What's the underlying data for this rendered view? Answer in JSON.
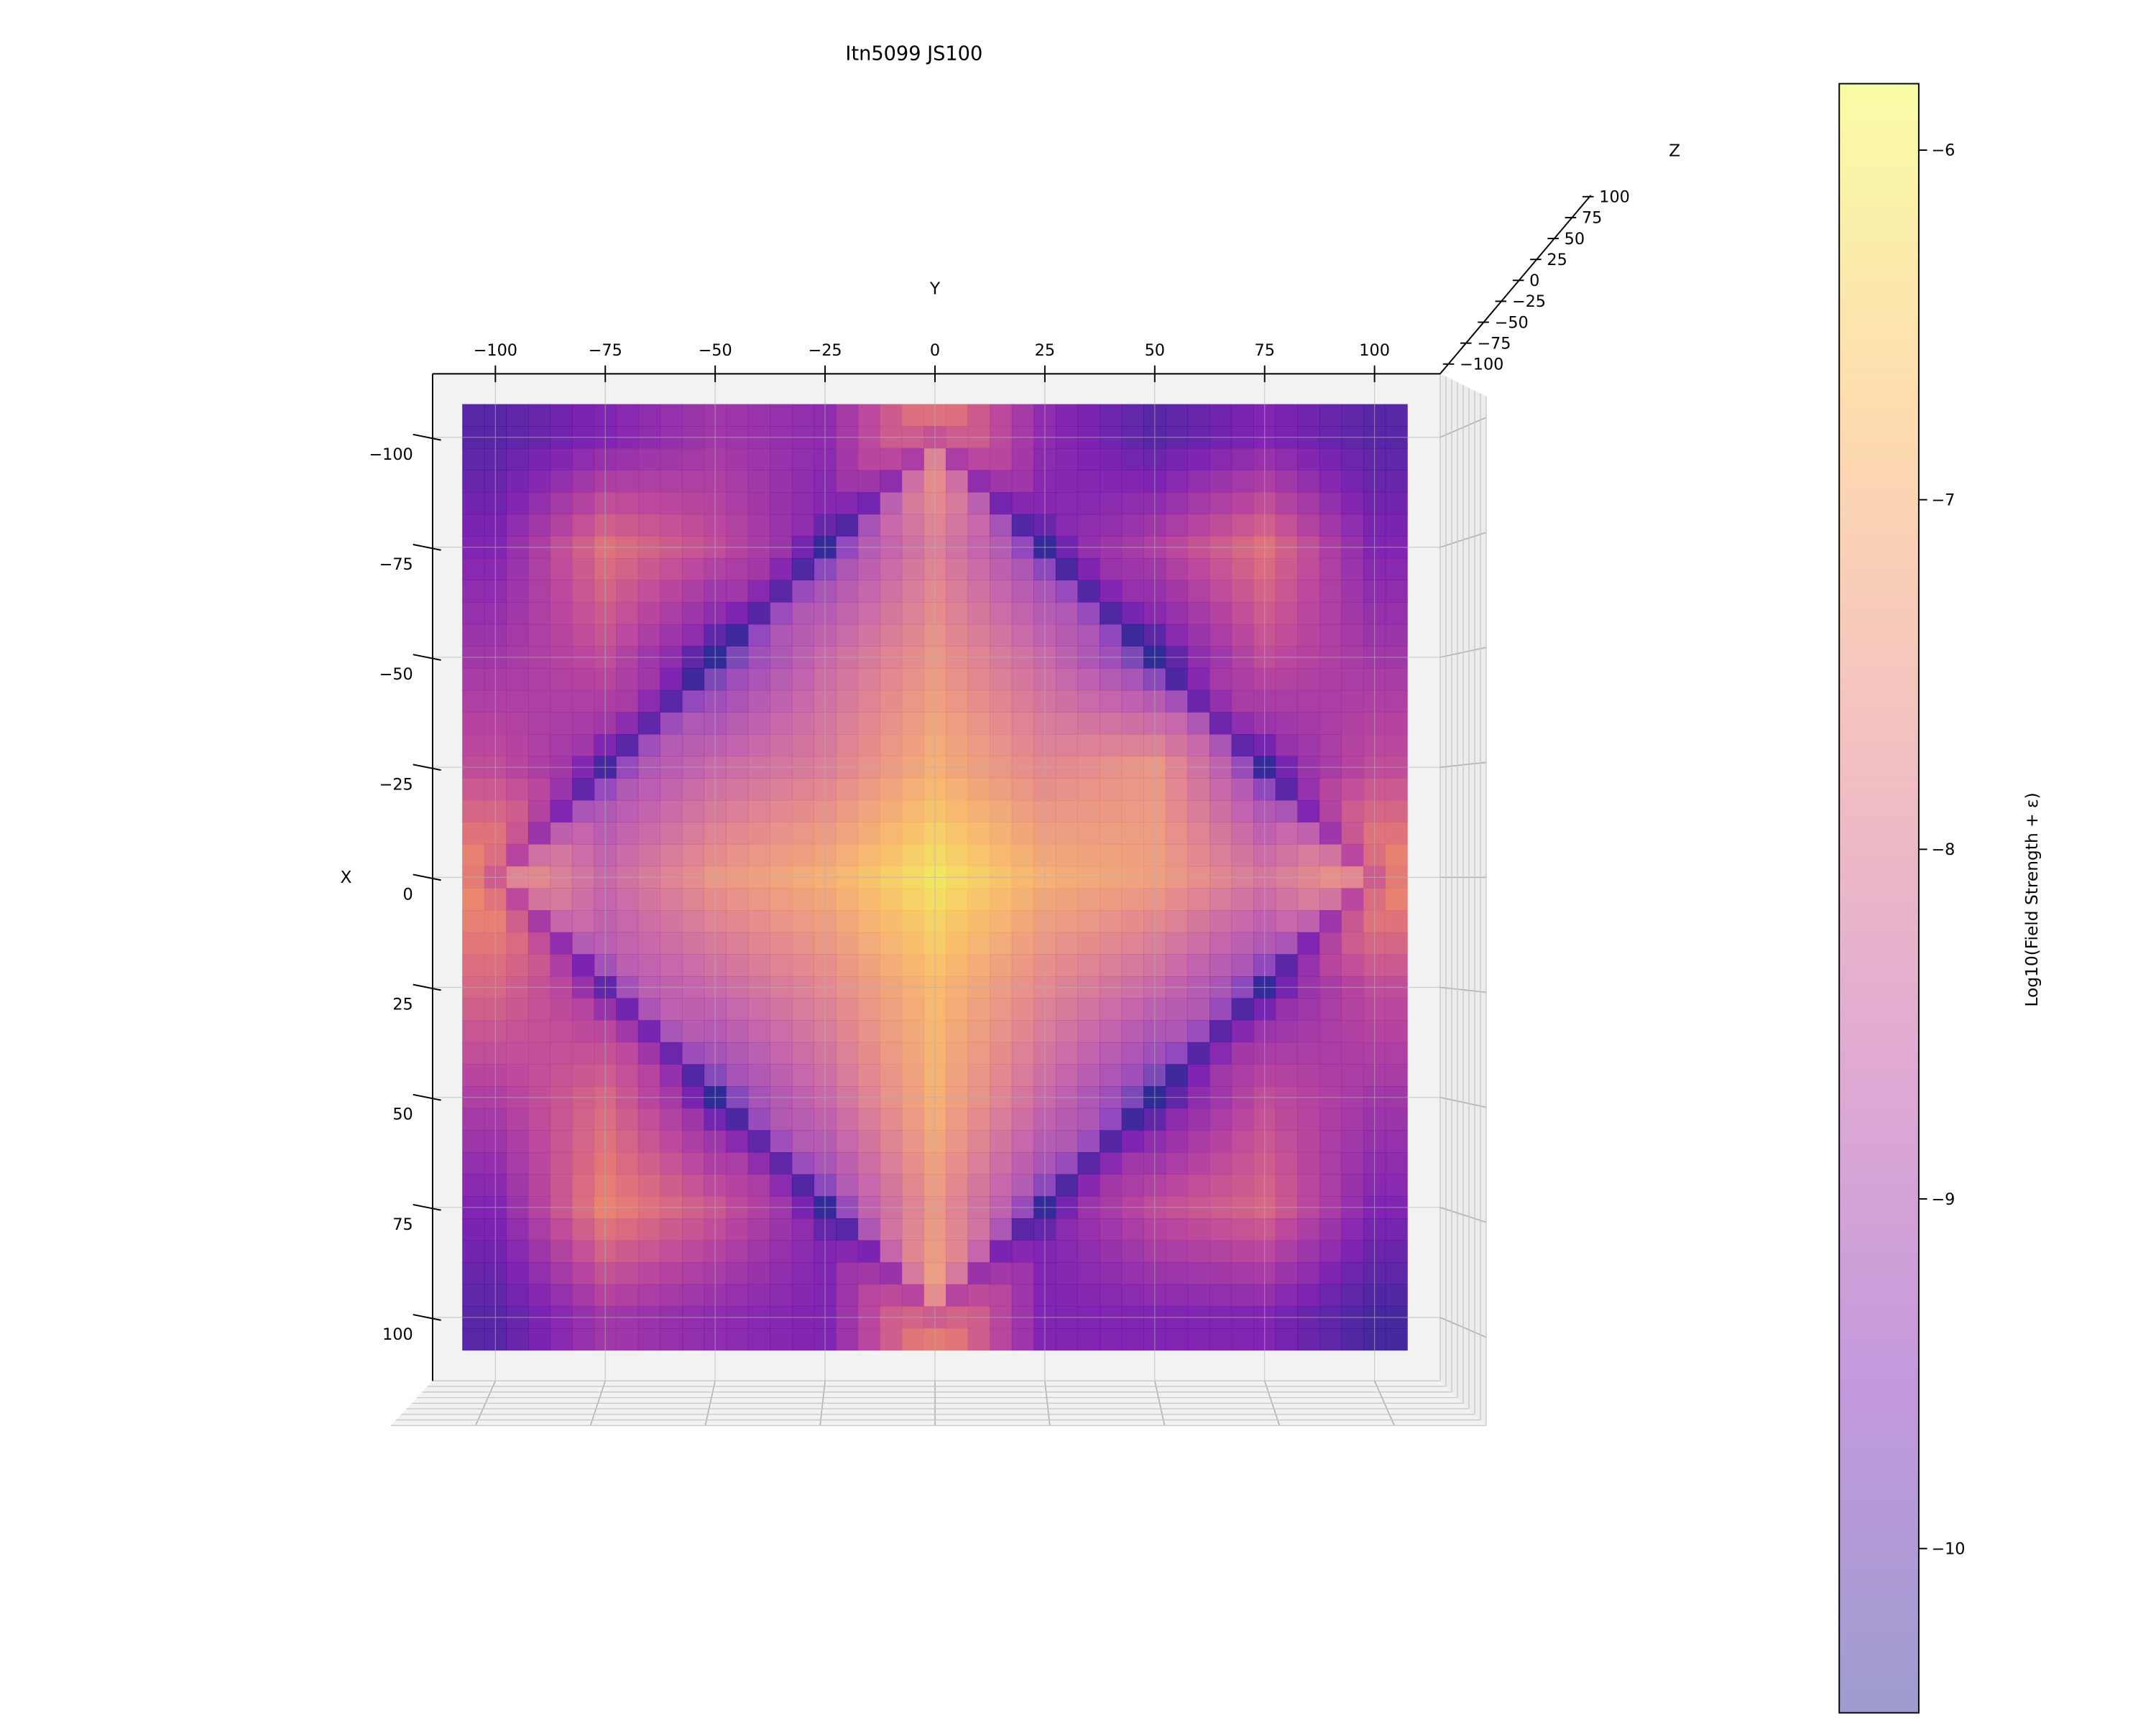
{
  "chart_data": {
    "type": "scatter",
    "projection": "3d",
    "view": "top-down",
    "title": "Itn5099 JS100",
    "xlabel": "X",
    "ylabel": "Y",
    "zlabel": "Z",
    "x_ticks": [
      "−100",
      "−75",
      "−50",
      "−25",
      "0",
      "25",
      "50",
      "75",
      "100"
    ],
    "x_tick_values": [
      -100,
      -75,
      -50,
      -25,
      0,
      25,
      50,
      75,
      100
    ],
    "y_ticks": [
      "−100",
      "−75",
      "−50",
      "−25",
      "0",
      "25",
      "50",
      "75",
      "100"
    ],
    "y_tick_values": [
      -100,
      -75,
      -50,
      -25,
      0,
      25,
      50,
      75,
      100
    ],
    "z_ticks": [
      "−100",
      "−75",
      "−50",
      "−25",
      "0",
      "25",
      "50",
      "75",
      "100"
    ],
    "x_range": [
      -115,
      115
    ],
    "y_range": [
      -115,
      115
    ],
    "colormap": "plasma",
    "colormap_stops": [
      "#0d0887",
      "#6a00a8",
      "#b12a90",
      "#e16462",
      "#fca636",
      "#f0f921"
    ],
    "point_alpha": 0.4,
    "field_grid": {
      "x": [
        -100,
        -75,
        -50,
        -25,
        0,
        25,
        50,
        75,
        100
      ],
      "y": [
        -100,
        -75,
        -50,
        -25,
        0,
        25,
        50,
        75,
        100
      ],
      "log10_values": [
        [
          -10,
          -9.5,
          -9,
          -9.3,
          -7.5,
          -9.3,
          -10,
          -9.5,
          -10
        ],
        [
          -9.5,
          -7.8,
          -8.5,
          -9.5,
          -8,
          -9.5,
          -8.8,
          -7.8,
          -9.5
        ],
        [
          -9,
          -8.5,
          -9.8,
          -8.5,
          -7.5,
          -8.5,
          -9.8,
          -8.5,
          -9
        ],
        [
          -8.5,
          -9.3,
          -8.5,
          -8,
          -7,
          -7.8,
          -7.5,
          -9.5,
          -8.5
        ],
        [
          -7.3,
          -8.5,
          -7.5,
          -7,
          -6.1,
          -7,
          -7.3,
          -8.2,
          -7.3
        ],
        [
          -8,
          -9,
          -8.5,
          -7.8,
          -6.8,
          -7.8,
          -8.5,
          -9.5,
          -8.5
        ],
        [
          -8.8,
          -8,
          -9.6,
          -8.5,
          -7,
          -8.5,
          -9.8,
          -8.5,
          -9
        ],
        [
          -9.5,
          -7.5,
          -8.3,
          -9.5,
          -7.5,
          -9.5,
          -8.5,
          -8,
          -9.5
        ],
        [
          -10,
          -9,
          -9.3,
          -9.5,
          -7.3,
          -9.5,
          -9.5,
          -9.5,
          -10.2
        ]
      ]
    },
    "colorbar": {
      "label": "Log10(Field Strength + ε)",
      "range": [
        -10.47,
        -5.81
      ],
      "ticks": [
        "−6",
        "−7",
        "−8",
        "−9",
        "−10"
      ],
      "tick_values": [
        -6,
        -7,
        -8,
        -9,
        -10
      ]
    }
  }
}
